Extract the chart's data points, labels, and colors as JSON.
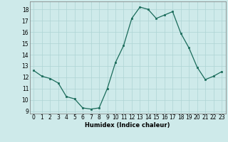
{
  "x": [
    0,
    1,
    2,
    3,
    4,
    5,
    6,
    7,
    8,
    9,
    10,
    11,
    12,
    13,
    14,
    15,
    16,
    17,
    18,
    19,
    20,
    21,
    22,
    23
  ],
  "y": [
    12.6,
    12.1,
    11.9,
    11.5,
    10.3,
    10.1,
    9.3,
    9.2,
    9.3,
    11.0,
    13.3,
    14.8,
    17.2,
    18.2,
    18.0,
    17.2,
    17.5,
    17.8,
    15.9,
    14.6,
    12.9,
    11.8,
    12.1,
    12.5
  ],
  "xlabel": "Humidex (Indice chaleur)",
  "ylim": [
    8.8,
    18.7
  ],
  "xlim": [
    -0.5,
    23.5
  ],
  "yticks": [
    9,
    10,
    11,
    12,
    13,
    14,
    15,
    16,
    17,
    18
  ],
  "xticks": [
    0,
    1,
    2,
    3,
    4,
    5,
    6,
    7,
    8,
    9,
    10,
    11,
    12,
    13,
    14,
    15,
    16,
    17,
    18,
    19,
    20,
    21,
    22,
    23
  ],
  "line_color": "#1a6b5a",
  "marker_color": "#1a6b5a",
  "bg_color": "#ceeaea",
  "grid_color": "#aed4d4",
  "text_color": "#000000",
  "xlabel_fontsize": 6.0,
  "tick_fontsize": 5.5
}
